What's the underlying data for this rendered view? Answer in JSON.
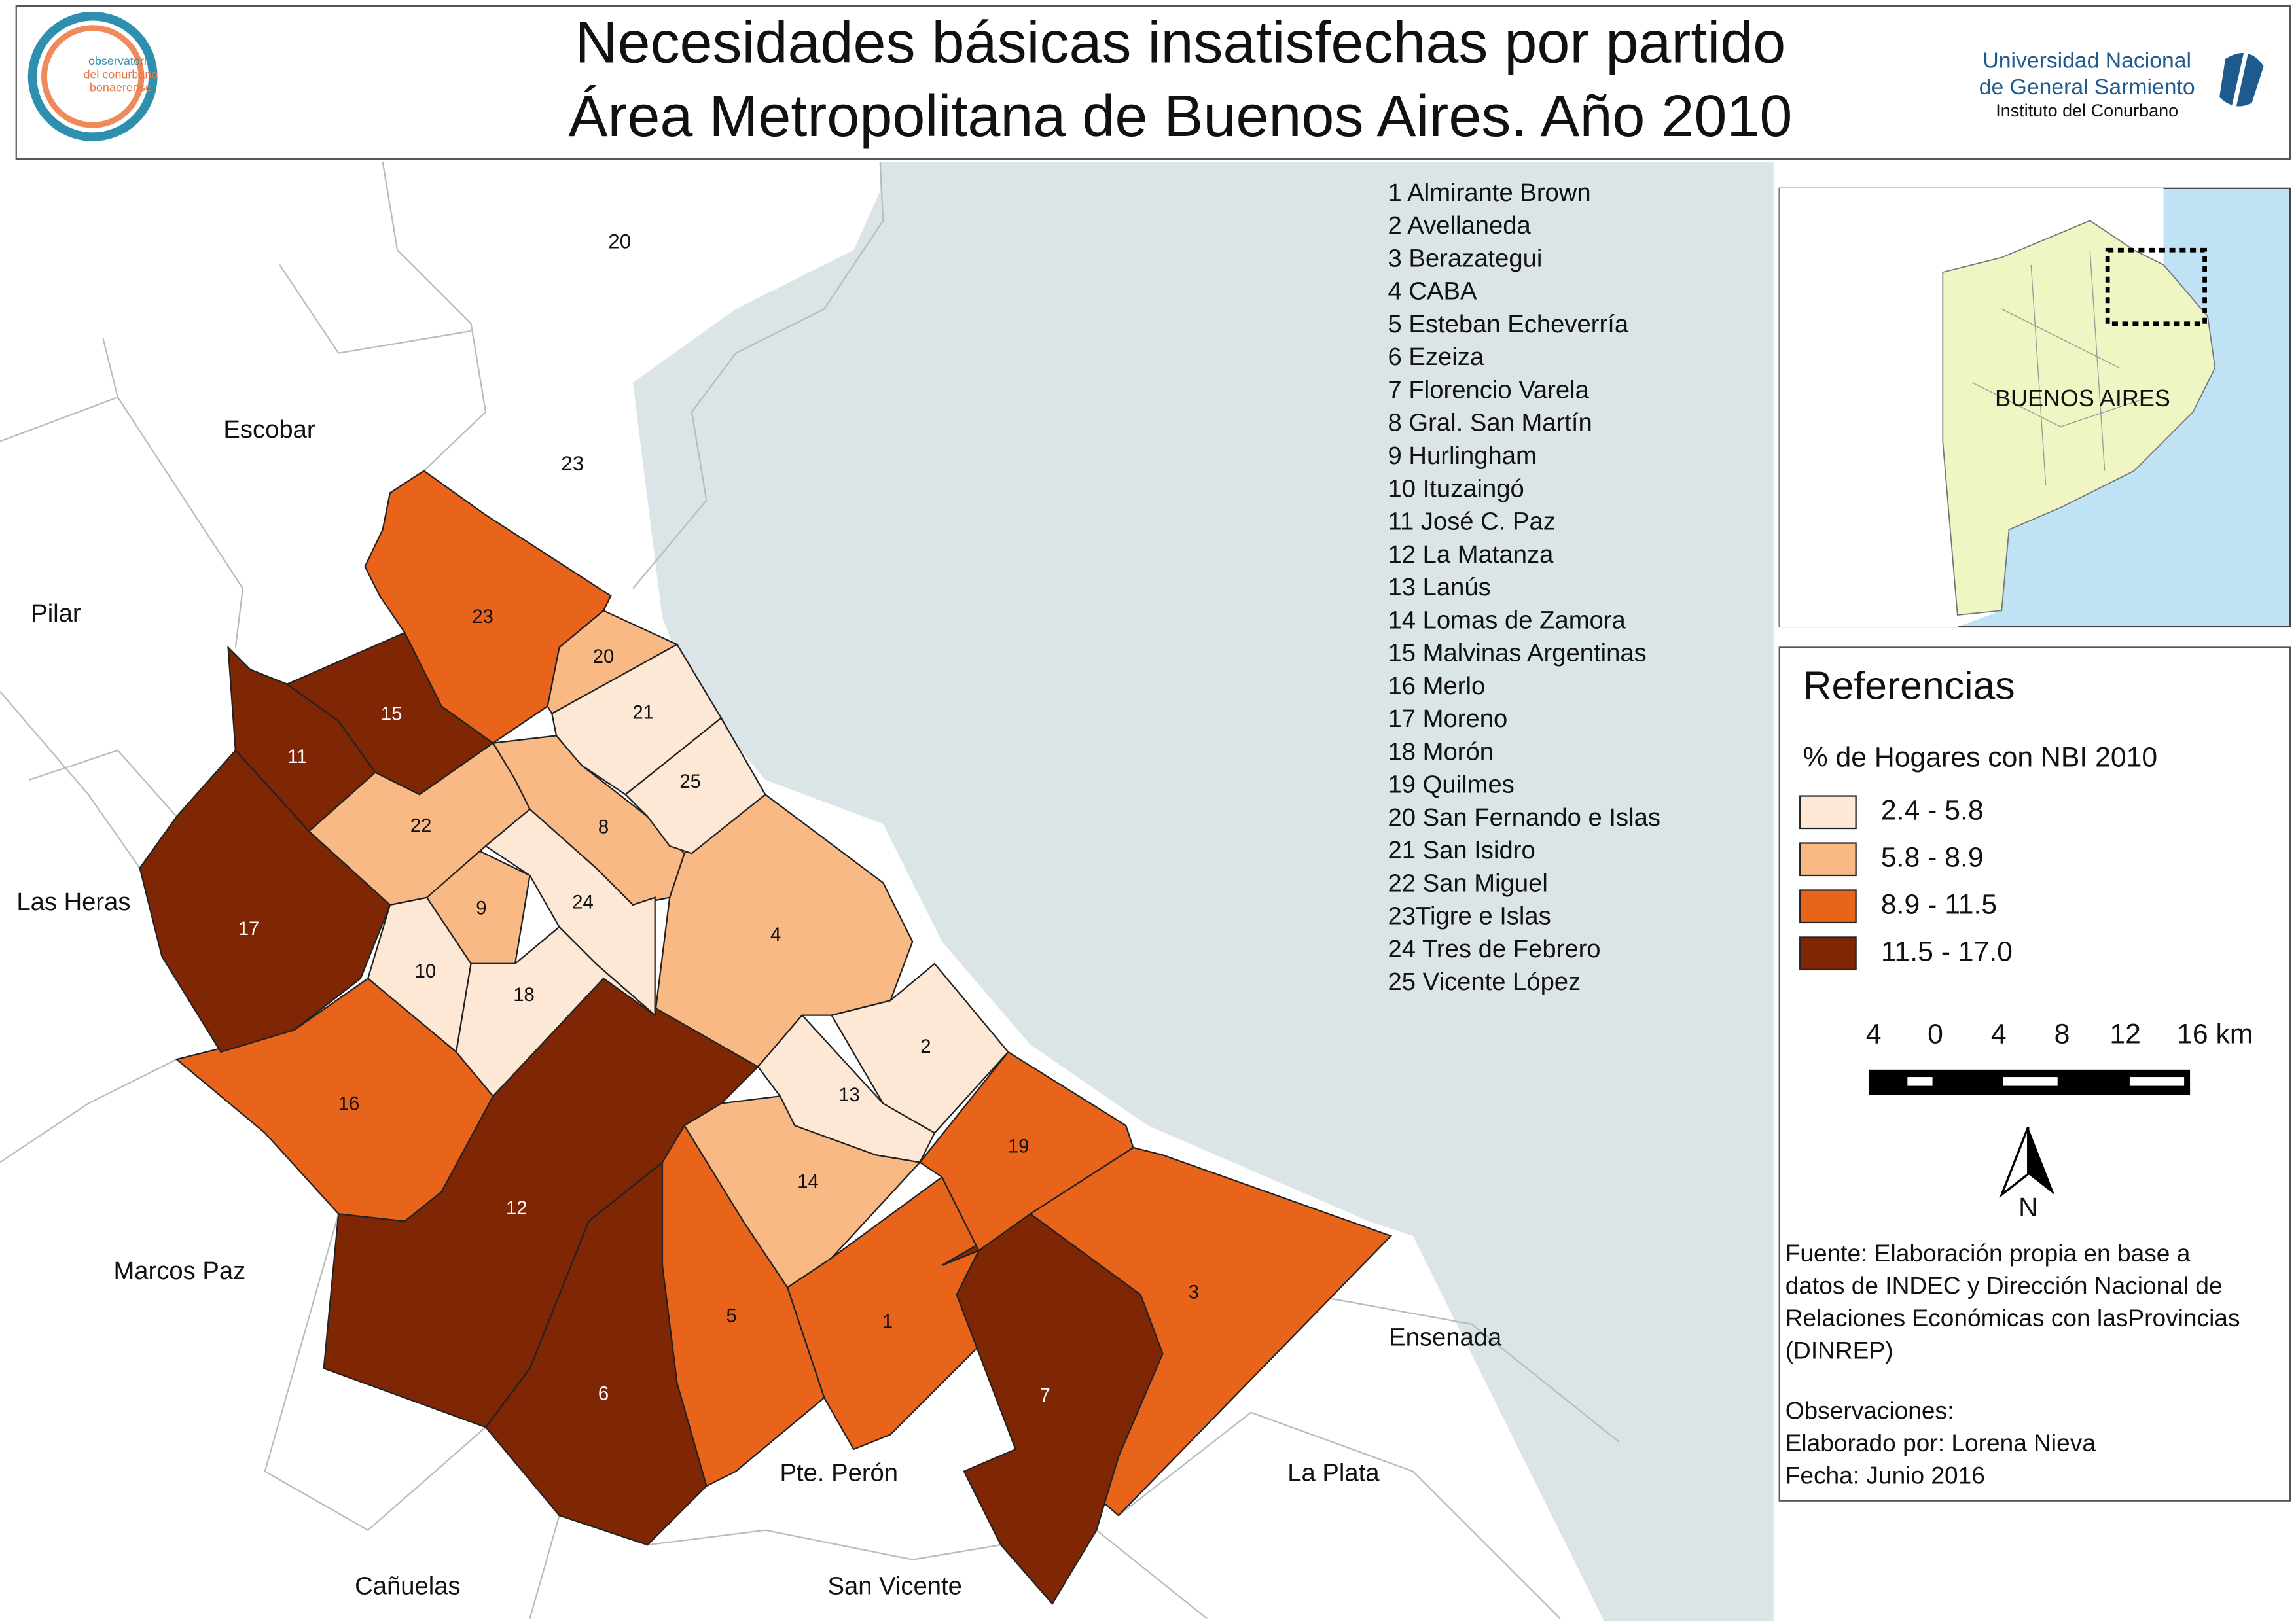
{
  "header": {
    "title": [
      "Necesidades básicas insatisfechas por partido",
      "Área Metropolitana de Buenos Aires. Año 2010"
    ],
    "logo_left": [
      "observatorio",
      "del conurbano",
      "bonaerense"
    ],
    "university": [
      "Universidad Nacional",
      "de General Sarmiento"
    ],
    "institute": "Instituto del Conurbano"
  },
  "partidos": [
    "1 Almirante Brown",
    "2 Avellaneda",
    "3 Berazategui",
    "4 CABA",
    "5 Esteban Echeverría",
    "6 Ezeiza",
    "7 Florencio Varela",
    "8 Gral. San Martín",
    "9 Hurlingham",
    "10 Ituzaingó",
    "11 José C. Paz",
    "12 La Matanza",
    "13 Lanús",
    "14 Lomas de Zamora",
    "15 Malvinas Argentinas",
    "16 Merlo",
    "17 Moreno",
    "18 Morón",
    "19 Quilmes",
    "20 San Fernando e Islas",
    "21 San Isidro",
    "22 San Miguel",
    "23Tigre e Islas",
    "24 Tres de Febrero",
    "25 Vicente López"
  ],
  "map": {
    "regions": [
      {
        "label": "1",
        "color": "#e8641b"
      },
      {
        "label": "2",
        "color": "#fde8d6"
      },
      {
        "label": "3",
        "color": "#e8641b"
      },
      {
        "label": "4",
        "color": "#f9b985"
      },
      {
        "label": "5",
        "color": "#e8641b"
      },
      {
        "label": "6",
        "color": "#7f2605"
      },
      {
        "label": "7",
        "color": "#7f2605"
      },
      {
        "label": "8",
        "color": "#f9b985"
      },
      {
        "label": "9",
        "color": "#f9b985"
      },
      {
        "label": "10",
        "color": "#fde8d6"
      },
      {
        "label": "11",
        "color": "#7f2605"
      },
      {
        "label": "12",
        "color": "#7f2605"
      },
      {
        "label": "13",
        "color": "#fde8d6"
      },
      {
        "label": "14",
        "color": "#f9b985"
      },
      {
        "label": "15",
        "color": "#7f2605"
      },
      {
        "label": "16",
        "color": "#e8641b"
      },
      {
        "label": "17",
        "color": "#7f2605"
      },
      {
        "label": "18",
        "color": "#fde8d6"
      },
      {
        "label": "19",
        "color": "#e8641b"
      },
      {
        "label": "20",
        "color": "#f9b985"
      },
      {
        "label": "21",
        "color": "#fde8d6"
      },
      {
        "label": "22",
        "color": "#f9b985"
      },
      {
        "label": "23",
        "color": "#e8641b"
      },
      {
        "label": "24",
        "color": "#fde8d6"
      },
      {
        "label": "25",
        "color": "#fde8d6"
      }
    ],
    "places": [
      "20",
      "23",
      "Escobar",
      "Pilar",
      "Las Heras",
      "Marcos Paz",
      "Cañuelas",
      "Pte. Perón",
      "San Vicente",
      "La Plata",
      "Ensenada"
    ]
  },
  "inset": {
    "label": "BUENOS AIRES"
  },
  "legend": {
    "title": "Referencias",
    "subtitle": "% de Hogares con NBI 2010",
    "classes": [
      {
        "label": "2.4 - 5.8",
        "color": "#fde8d6"
      },
      {
        "label": "5.8 - 8.9",
        "color": "#f9b985"
      },
      {
        "label": "8.9 - 11.5",
        "color": "#e8641b"
      },
      {
        "label": "11.5 - 17.0",
        "color": "#7f2605"
      }
    ]
  },
  "scale_bar": [
    "4",
    "0",
    "4",
    "8",
    "12",
    "16 km"
  ],
  "north": "N",
  "source": [
    "Fuente: Elaboración propia en base a",
    "datos de INDEC y Dirección Nacional de",
    "Relaciones Económicas con lasProvincias",
    "(DINREP)"
  ],
  "observations": [
    "Observaciones:",
    "Elaborado por: Lorena Nieva",
    "Fecha: Junio 2016"
  ]
}
